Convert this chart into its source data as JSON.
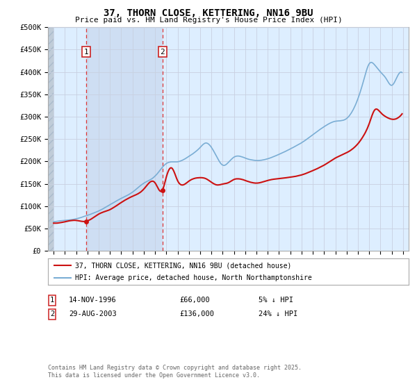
{
  "title_line1": "37, THORN CLOSE, KETTERING, NN16 9BU",
  "title_line2": "Price paid vs. HM Land Registry's House Price Index (HPI)",
  "ylim": [
    0,
    500000
  ],
  "yticks": [
    0,
    50000,
    100000,
    150000,
    200000,
    250000,
    300000,
    350000,
    400000,
    450000,
    500000
  ],
  "ytick_labels": [
    "£0",
    "£50K",
    "£100K",
    "£150K",
    "£200K",
    "£250K",
    "£300K",
    "£350K",
    "£400K",
    "£450K",
    "£500K"
  ],
  "hpi_color": "#7aadd4",
  "price_color": "#cc1111",
  "marker_color": "#cc1111",
  "sale1_x": 1996.87,
  "sale1_y": 66000,
  "sale2_x": 2003.66,
  "sale2_y": 136000,
  "sale1_date": "14-NOV-1996",
  "sale1_price": "£66,000",
  "sale1_hpi": "5% ↓ HPI",
  "sale2_date": "29-AUG-2003",
  "sale2_price": "£136,000",
  "sale2_hpi": "24% ↓ HPI",
  "legend_line1": "37, THORN CLOSE, KETTERING, NN16 9BU (detached house)",
  "legend_line2": "HPI: Average price, detached house, North Northamptonshire",
  "footer": "Contains HM Land Registry data © Crown copyright and database right 2025.\nThis data is licensed under the Open Government Licence v3.0.",
  "background_color": "#ffffff",
  "plot_bg_color": "#ddeeff",
  "hatch_color": "#c8d8e8",
  "shade_color": "#c8d8ee",
  "xmin": 1993.5,
  "xmax": 2025.5
}
